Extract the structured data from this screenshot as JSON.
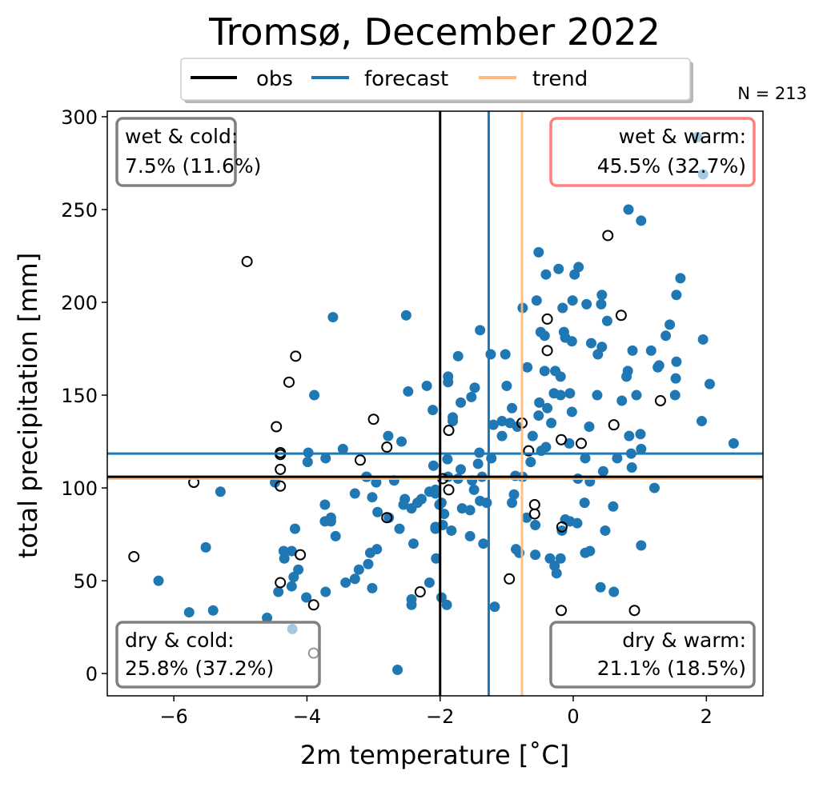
{
  "chart_data": {
    "type": "scatter",
    "title": "Tromsø, December 2022",
    "xlabel": "2m temperature [˚C]",
    "ylabel": "total precipitation [mm]",
    "xlim": [
      -7.0,
      2.85
    ],
    "ylim": [
      -12,
      303
    ],
    "xticks": [
      -6,
      -4,
      -2,
      0,
      2
    ],
    "xtick_labels": [
      "−6",
      "−4",
      "−2",
      "0",
      "2"
    ],
    "yticks": [
      0,
      50,
      100,
      150,
      200,
      250,
      300
    ],
    "ytick_labels": [
      "0",
      "50",
      "100",
      "150",
      "200",
      "250",
      "300"
    ],
    "grid": false,
    "annotation_n": "N = 213",
    "legend": {
      "placement": "top-center",
      "entries": [
        {
          "label": "obs",
          "color": "#000000"
        },
        {
          "label": "forecast",
          "color": "#1f77b4"
        },
        {
          "label": "trend",
          "color": "#ffbb78"
        }
      ]
    },
    "reference_lines": {
      "obs": {
        "temperature": -2.0,
        "precipitation": 106
      },
      "forecast": {
        "temperature": -1.27,
        "precipitation": 118.5
      },
      "trend": {
        "temperature": -0.77,
        "precipitation": 105
      }
    },
    "quadrants": [
      {
        "id": "wet-cold",
        "title": "wet & cold:",
        "value": "7.5% (11.6%)",
        "highlight": false
      },
      {
        "id": "wet-warm",
        "title": "wet & warm:",
        "value": "45.5% (32.7%)",
        "highlight": true
      },
      {
        "id": "dry-cold",
        "title": "dry & cold:",
        "value": "25.8% (37.2%)",
        "highlight": false
      },
      {
        "id": "dry-warm",
        "title": "dry & warm:",
        "value": "21.1% (18.5%)",
        "highlight": false
      }
    ],
    "series": [
      {
        "name": "forecast",
        "color": "#1f77b4",
        "points": [
          [
            -6.23,
            50
          ],
          [
            -5.77,
            33
          ],
          [
            -5.52,
            68
          ],
          [
            -5.3,
            98
          ],
          [
            -5.41,
            34
          ],
          [
            -4.6,
            30
          ],
          [
            -4.22,
            24
          ],
          [
            -2.64,
            2
          ],
          [
            -4.48,
            103
          ],
          [
            -4.18,
            78
          ],
          [
            -4.35,
            66
          ],
          [
            -4.23,
            66
          ],
          [
            -4.34,
            62
          ],
          [
            -4.13,
            56
          ],
          [
            -4.2,
            52
          ],
          [
            -4.43,
            44
          ],
          [
            -4.23,
            47
          ],
          [
            -4.01,
            41
          ],
          [
            -3.72,
            44
          ],
          [
            -3.42,
            49
          ],
          [
            -3.28,
            51
          ],
          [
            -3.22,
            56
          ],
          [
            -3.08,
            59
          ],
          [
            -3.05,
            65
          ],
          [
            -2.95,
            67
          ],
          [
            -3.02,
            46
          ],
          [
            -2.16,
            49
          ],
          [
            -2.43,
            40
          ],
          [
            -2.43,
            37
          ],
          [
            -2.06,
            62
          ],
          [
            -3.73,
            91
          ],
          [
            -3.73,
            82
          ],
          [
            -3.64,
            84
          ],
          [
            -3.64,
            82
          ],
          [
            -3.57,
            74
          ],
          [
            -3.28,
            97
          ],
          [
            -3.02,
            95
          ],
          [
            -2.96,
            103
          ],
          [
            -3.1,
            106
          ],
          [
            -2.69,
            104
          ],
          [
            -2.94,
            87
          ],
          [
            -2.61,
            78
          ],
          [
            -2.4,
            70
          ],
          [
            -2.53,
            94
          ],
          [
            -2.55,
            91
          ],
          [
            -2.43,
            89
          ],
          [
            -2.34,
            92
          ],
          [
            -2.28,
            94
          ],
          [
            -2.16,
            98
          ],
          [
            -2.07,
            97
          ],
          [
            -2.01,
            91
          ],
          [
            -2.07,
            78
          ],
          [
            -2.77,
            84
          ],
          [
            -3.61,
            192
          ],
          [
            -2.51,
            193
          ],
          [
            -3.89,
            150
          ],
          [
            -2.48,
            152
          ],
          [
            -2.2,
            155
          ],
          [
            -2.11,
            142
          ],
          [
            -2.78,
            128
          ],
          [
            -2.58,
            125
          ],
          [
            -3.98,
            119
          ],
          [
            -3.99,
            114
          ],
          [
            -3.72,
            116
          ],
          [
            -3.46,
            121
          ],
          [
            -2.1,
            112
          ],
          [
            -3.11,
            106
          ],
          [
            0.83,
            250
          ],
          [
            1.02,
            244
          ],
          [
            -0.52,
            227
          ],
          [
            -0.22,
            218
          ],
          [
            0.08,
            219
          ],
          [
            0.02,
            215
          ],
          [
            -0.41,
            215
          ],
          [
            1.61,
            213
          ],
          [
            0.43,
            204
          ],
          [
            1.55,
            204
          ],
          [
            -0.55,
            201
          ],
          [
            -0.01,
            201
          ],
          [
            0.2,
            199
          ],
          [
            0.42,
            199
          ],
          [
            -0.76,
            197
          ],
          [
            -0.16,
            197
          ],
          [
            0.51,
            190
          ],
          [
            1.45,
            188
          ],
          [
            1.39,
            182
          ],
          [
            -1.4,
            185
          ],
          [
            -0.49,
            184
          ],
          [
            -0.43,
            182
          ],
          [
            -0.14,
            184
          ],
          [
            -0.12,
            181
          ],
          [
            -0.02,
            179
          ],
          [
            0.27,
            178
          ],
          [
            0.43,
            176
          ],
          [
            0.37,
            172
          ],
          [
            1.95,
            180
          ],
          [
            -1.73,
            171
          ],
          [
            -1.24,
            172
          ],
          [
            -1.02,
            172
          ],
          [
            0.89,
            174
          ],
          [
            1.17,
            174
          ],
          [
            -0.69,
            165
          ],
          [
            -0.43,
            163
          ],
          [
            -0.27,
            163
          ],
          [
            -0.19,
            160
          ],
          [
            0.82,
            163
          ],
          [
            0.8,
            160
          ],
          [
            1.29,
            166
          ],
          [
            1.27,
            165
          ],
          [
            1.55,
            168
          ],
          [
            1.54,
            159
          ],
          [
            -1.88,
            160
          ],
          [
            -1.88,
            157
          ],
          [
            -1.48,
            154
          ],
          [
            -1.53,
            149
          ],
          [
            -1.69,
            146
          ],
          [
            -1.0,
            155
          ],
          [
            -0.92,
            143
          ],
          [
            -0.29,
            151
          ],
          [
            -0.19,
            150
          ],
          [
            -0.05,
            151
          ],
          [
            0.36,
            150
          ],
          [
            0.73,
            147
          ],
          [
            0.95,
            150
          ],
          [
            1.53,
            150
          ],
          [
            2.05,
            156
          ],
          [
            -0.51,
            146
          ],
          [
            -0.39,
            143
          ],
          [
            -0.02,
            141
          ],
          [
            -0.52,
            139
          ],
          [
            -0.33,
            135
          ],
          [
            0.24,
            133
          ],
          [
            -1.81,
            138
          ],
          [
            -1.81,
            136
          ],
          [
            -1.2,
            134
          ],
          [
            -1.07,
            136
          ],
          [
            -0.95,
            135
          ],
          [
            -0.84,
            133
          ],
          [
            -1.07,
            128
          ],
          [
            -0.61,
            128
          ],
          [
            -0.06,
            124
          ],
          [
            0.84,
            128
          ],
          [
            1.01,
            129
          ],
          [
            1.93,
            136
          ],
          [
            2.41,
            124
          ],
          [
            -0.41,
            122
          ],
          [
            -0.48,
            120
          ],
          [
            -1.41,
            119
          ],
          [
            1.02,
            121
          ],
          [
            0.87,
            118.5
          ],
          [
            1.86,
            289
          ],
          [
            1.95,
            269
          ],
          [
            -1.89,
            115.5
          ],
          [
            -1.23,
            116
          ],
          [
            -0.64,
            114
          ],
          [
            0.18,
            116
          ],
          [
            0.66,
            116
          ],
          [
            0.88,
            111
          ],
          [
            -1.69,
            110
          ],
          [
            -1.43,
            113
          ],
          [
            0.45,
            109
          ],
          [
            -1.88,
            106
          ],
          [
            -1.73,
            105
          ],
          [
            -1.52,
            104
          ],
          [
            -1.37,
            106
          ],
          [
            -0.87,
            106.5
          ],
          [
            -0.76,
            106
          ],
          [
            0.07,
            105
          ],
          [
            0.25,
            103.5
          ],
          [
            1.22,
            100
          ],
          [
            -2.07,
            99
          ],
          [
            -1.49,
            99
          ],
          [
            -1.98,
            92
          ],
          [
            -1.4,
            93
          ],
          [
            -1.3,
            92
          ],
          [
            -0.89,
            96.5
          ],
          [
            -0.92,
            92
          ],
          [
            0.17,
            92
          ],
          [
            0.6,
            90
          ],
          [
            -1.67,
            89
          ],
          [
            -1.55,
            88
          ],
          [
            -1.94,
            86
          ],
          [
            -0.7,
            84
          ],
          [
            -0.57,
            80
          ],
          [
            -0.12,
            83
          ],
          [
            -0.05,
            82
          ],
          [
            0.06,
            81
          ],
          [
            -0.17,
            77
          ],
          [
            0.48,
            77
          ],
          [
            -2.07,
            79
          ],
          [
            -1.96,
            80
          ],
          [
            -1.83,
            77
          ],
          [
            -1.55,
            74
          ],
          [
            -1.35,
            70
          ],
          [
            1.02,
            69
          ],
          [
            -0.86,
            67
          ],
          [
            -0.81,
            65
          ],
          [
            -0.57,
            64
          ],
          [
            -0.35,
            62
          ],
          [
            -0.19,
            62
          ],
          [
            0.18,
            65
          ],
          [
            0.25,
            66
          ],
          [
            -0.28,
            58
          ],
          [
            -0.25,
            54
          ],
          [
            0.41,
            46.5
          ],
          [
            0.61,
            44
          ],
          [
            -1.98,
            41
          ],
          [
            -1.9,
            37
          ],
          [
            -1.18,
            36
          ]
        ]
      },
      {
        "name": "obs",
        "color": "#000000",
        "points": [
          [
            -6.6,
            63
          ],
          [
            -5.7,
            103
          ],
          [
            -4.9,
            222
          ],
          [
            -4.17,
            171
          ],
          [
            -4.27,
            157
          ],
          [
            -4.46,
            133
          ],
          [
            -4.4,
            119
          ],
          [
            -4.4,
            118
          ],
          [
            -4.4,
            110
          ],
          [
            -4.4,
            101
          ],
          [
            -4.1,
            64
          ],
          [
            -4.4,
            49
          ],
          [
            -3.9,
            37
          ],
          [
            -3.9,
            11
          ],
          [
            -3.2,
            115
          ],
          [
            -3.0,
            137
          ],
          [
            -2.8,
            122
          ],
          [
            -2.8,
            84
          ],
          [
            -2.3,
            44
          ],
          [
            -1.96,
            105
          ],
          [
            -1.87,
            131
          ],
          [
            -1.87,
            99
          ],
          [
            -0.96,
            51
          ],
          [
            -0.77,
            135
          ],
          [
            -0.67,
            120
          ],
          [
            -0.58,
            91
          ],
          [
            -0.58,
            86
          ],
          [
            -0.39,
            191
          ],
          [
            -0.39,
            174
          ],
          [
            -0.18,
            126
          ],
          [
            -0.17,
            79
          ],
          [
            -0.18,
            34
          ],
          [
            0.12,
            124
          ],
          [
            0.61,
            134
          ],
          [
            0.52,
            236
          ],
          [
            0.72,
            193
          ],
          [
            0.92,
            34
          ],
          [
            1.31,
            147
          ]
        ]
      }
    ]
  }
}
